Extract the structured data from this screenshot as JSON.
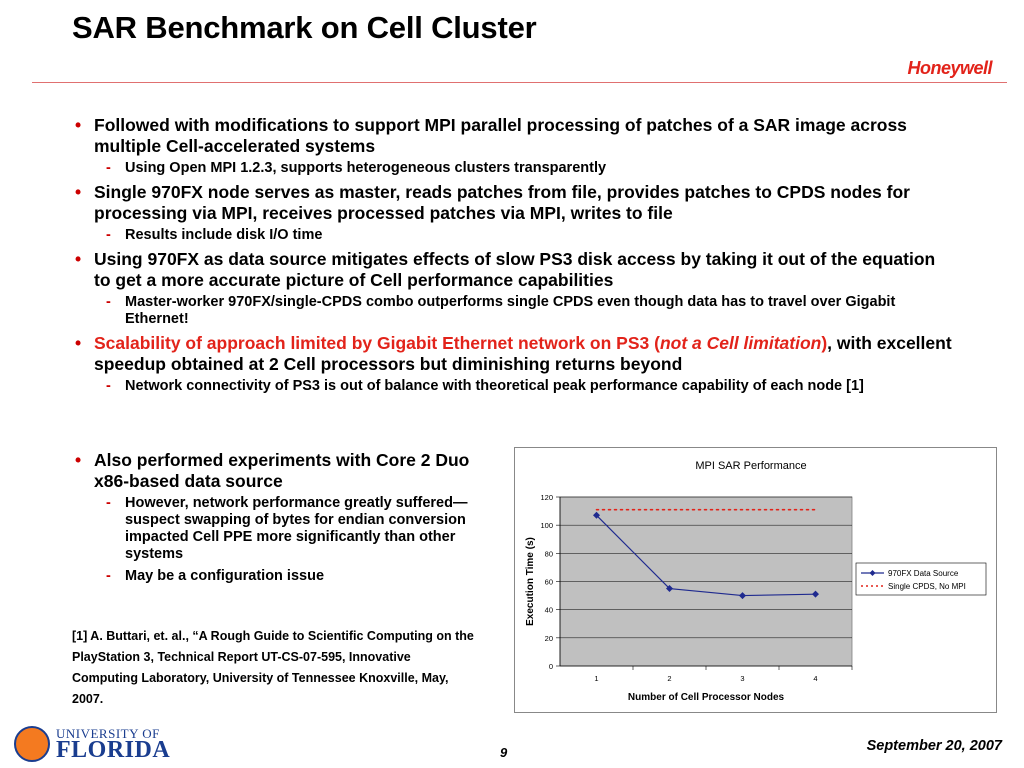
{
  "slide": {
    "title": "SAR Benchmark on Cell Cluster",
    "logo": "Honeywell",
    "page_number": "9",
    "date": "September 20, 2007"
  },
  "bullets": [
    {
      "text": "Followed with modifications to support MPI parallel processing of patches of a SAR image across multiple Cell-accelerated systems",
      "sub": [
        "Using Open MPI 1.2.3, supports heterogeneous clusters transparently"
      ]
    },
    {
      "text": "Single 970FX node serves as master, reads patches from file, provides patches to CPDS nodes for processing via MPI, receives processed patches via MPI, writes to file",
      "sub": [
        "Results include disk I/O time"
      ]
    },
    {
      "text": "Using 970FX as data source mitigates effects of slow PS3 disk access by taking it out of the equation to get a more accurate picture of Cell performance capabilities",
      "sub": [
        "Master-worker 970FX/single-CPDS combo outperforms single CPDS even though data has to travel over Gigabit Ethernet!"
      ]
    },
    {
      "text_red_a": "Scalability of approach limited by Gigabit Ethernet network on PS3 (",
      "text_red_italic": "not a Cell limitation",
      "text_red_b": ")",
      "text_rest": ", with excellent speedup obtained at 2 Cell processors but diminishing returns beyond",
      "sub": [
        "Network connectivity of PS3 is out of balance with theoretical peak performance capability of each node [1]"
      ]
    },
    {
      "text": "Also performed experiments with Core 2 Duo x86-based data source",
      "sub": [
        "However, network performance greatly suffered—suspect swapping of bytes for endian conversion impacted Cell PPE more significantly than other systems",
        "May be a configuration issue"
      ]
    }
  ],
  "footnote": "[1] A. Buttari, et. al., “A Rough Guide to Scientific Computing on the PlayStation 3, Technical Report UT-CS-07-595, Innovative Computing Laboratory, University of Tennessee Knoxville, May, 2007.",
  "footer_logo": {
    "line1": "UNIVERSITY OF",
    "line2": "FLORIDA"
  },
  "chart_data": {
    "type": "line",
    "title": "MPI SAR Performance",
    "xlabel": "Number of Cell Processor Nodes",
    "ylabel": "Execution Time (s)",
    "x": [
      1,
      2,
      3,
      4
    ],
    "ylim": [
      0,
      120
    ],
    "yticks": [
      0,
      20,
      40,
      60,
      80,
      100,
      120
    ],
    "grid": true,
    "legend_position": "right",
    "series": [
      {
        "name": "970FX Data Source",
        "values": [
          107,
          55,
          50,
          51
        ],
        "color": "#1f2a8f",
        "style": "solid-diamond"
      },
      {
        "name": "Single CPDS, No MPI",
        "values": [
          111,
          111,
          111,
          111
        ],
        "color": "#e2231a",
        "style": "dotted"
      }
    ]
  }
}
